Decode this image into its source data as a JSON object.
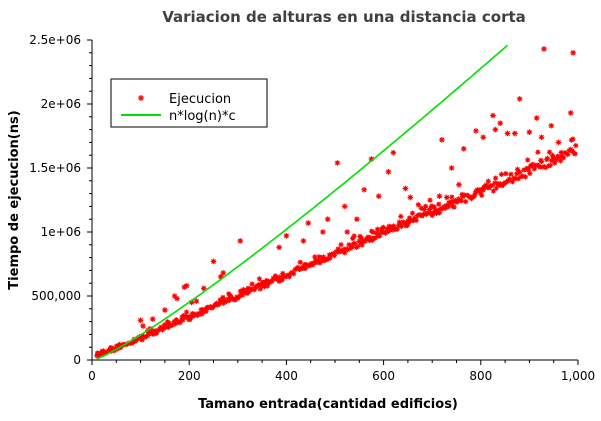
{
  "chart_data": {
    "type": "scatter",
    "title": "Variacion de alturas en una distancia corta",
    "xlabel": "Tamano entrada(cantidad edificios)",
    "ylabel": "Tiempo de ejecucion(ns)",
    "xlim": [
      0,
      1000
    ],
    "ylim": [
      0,
      2500000
    ],
    "x_ticks": [
      0,
      200,
      400,
      600,
      800,
      1000
    ],
    "x_tick_labels": [
      "0",
      "200",
      "400",
      "600",
      "800",
      "1,000"
    ],
    "y_ticks": [
      0,
      500000,
      1000000,
      1500000,
      2000000,
      2500000
    ],
    "y_tick_labels": [
      "0",
      "500,000",
      "1e+06",
      "1.5e+06",
      "2e+06",
      "2.5e+06"
    ],
    "grid": false,
    "legend_position": "top-left",
    "series": [
      {
        "name": "Ejecucion",
        "kind": "scatter",
        "marker": "*",
        "color": "#ff0000",
        "baseline_slope_ns_per_n": 1640,
        "points": [
          [
            100,
            310000
          ],
          [
            105,
            265000
          ],
          [
            115,
            230000
          ],
          [
            125,
            320000
          ],
          [
            150,
            390000
          ],
          [
            170,
            500000
          ],
          [
            175,
            480000
          ],
          [
            190,
            570000
          ],
          [
            195,
            580000
          ],
          [
            205,
            450000
          ],
          [
            215,
            460000
          ],
          [
            230,
            560000
          ],
          [
            250,
            770000
          ],
          [
            265,
            650000
          ],
          [
            270,
            680000
          ],
          [
            305,
            930000
          ],
          [
            385,
            880000
          ],
          [
            400,
            970000
          ],
          [
            435,
            930000
          ],
          [
            445,
            1070000
          ],
          [
            475,
            1000000
          ],
          [
            485,
            1100000
          ],
          [
            505,
            1540000
          ],
          [
            520,
            1200000
          ],
          [
            525,
            1000000
          ],
          [
            545,
            1100000
          ],
          [
            560,
            1330000
          ],
          [
            575,
            1570000
          ],
          [
            590,
            1280000
          ],
          [
            610,
            1470000
          ],
          [
            620,
            1620000
          ],
          [
            645,
            1340000
          ],
          [
            655,
            1270000
          ],
          [
            700,
            1200000
          ],
          [
            715,
            1280000
          ],
          [
            720,
            1720000
          ],
          [
            730,
            1270000
          ],
          [
            740,
            1500000
          ],
          [
            755,
            1370000
          ],
          [
            765,
            1650000
          ],
          [
            790,
            1790000
          ],
          [
            805,
            1740000
          ],
          [
            825,
            1910000
          ],
          [
            830,
            1800000
          ],
          [
            840,
            1850000
          ],
          [
            855,
            1770000
          ],
          [
            870,
            1770000
          ],
          [
            880,
            2040000
          ],
          [
            900,
            1780000
          ],
          [
            915,
            1890000
          ],
          [
            925,
            1740000
          ],
          [
            930,
            2430000
          ],
          [
            945,
            1830000
          ],
          [
            960,
            1700000
          ],
          [
            985,
            1930000
          ],
          [
            990,
            2400000
          ]
        ]
      },
      {
        "name": "n*log(n)*c",
        "kind": "line",
        "color": "#00e000",
        "c": 426,
        "x_range": [
          10,
          855
        ]
      }
    ]
  }
}
